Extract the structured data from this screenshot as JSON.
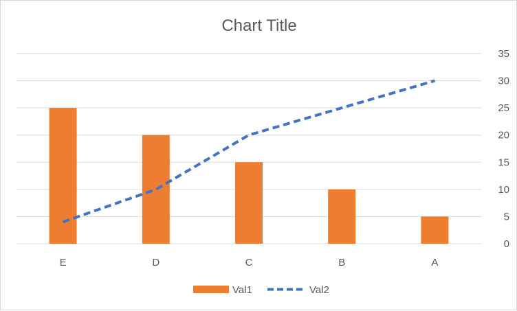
{
  "chart_data": {
    "type": "bar",
    "title": "Chart Title",
    "categories": [
      "E",
      "D",
      "C",
      "B",
      "A"
    ],
    "series": [
      {
        "name": "Val1",
        "type": "bar",
        "values": [
          25,
          20,
          15,
          10,
          5
        ],
        "color": "#ed7d31"
      },
      {
        "name": "Val2",
        "type": "line",
        "style": "dashed",
        "values": [
          4,
          10,
          20,
          25,
          30
        ],
        "color": "#4472c4"
      }
    ],
    "y_ticks": [
      "0",
      "5",
      "10",
      "15",
      "20",
      "25",
      "30",
      "35"
    ],
    "ylim": [
      0,
      35
    ],
    "y_axis_side": "right",
    "grid": true,
    "legend_position": "bottom",
    "gridline_color": "#d9d9d9",
    "label_color": "#595959"
  }
}
